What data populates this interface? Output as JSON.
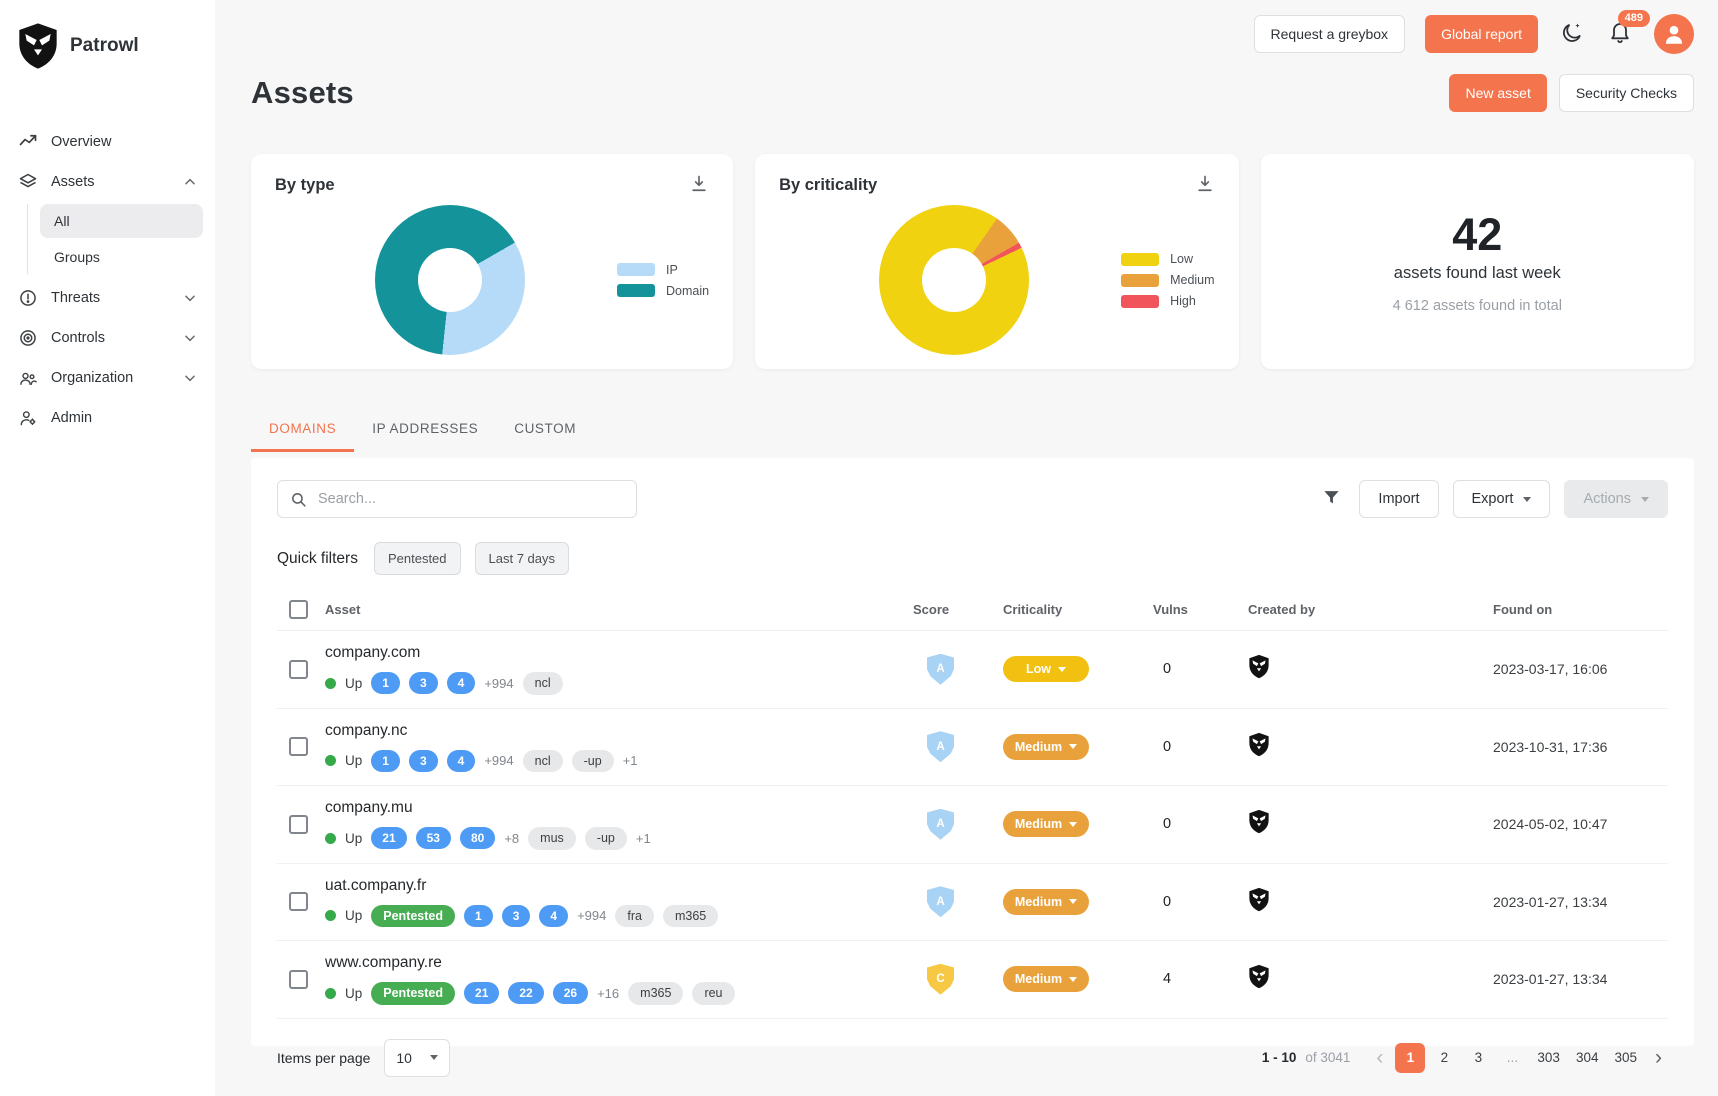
{
  "brand": {
    "name": "Patrowl"
  },
  "sidebar": {
    "items": [
      {
        "label": "Overview"
      },
      {
        "label": "Assets",
        "children": [
          {
            "label": "All"
          },
          {
            "label": "Groups"
          }
        ]
      },
      {
        "label": "Threats"
      },
      {
        "label": "Controls"
      },
      {
        "label": "Organization"
      },
      {
        "label": "Admin"
      }
    ]
  },
  "header": {
    "request_greybox_label": "Request a greybox",
    "global_report_label": "Global report",
    "notification_count": "489"
  },
  "page": {
    "title": "Assets",
    "new_asset_label": "New asset",
    "security_checks_label": "Security Checks"
  },
  "chart_data": [
    {
      "type": "pie",
      "title": "By type",
      "donut": true,
      "start_angle": 60,
      "segments": [
        {
          "label": "IP",
          "value": 35,
          "color": "#b5dbf8"
        },
        {
          "label": "Domain",
          "value": 65,
          "color": "#14939b"
        }
      ],
      "legend": [
        {
          "label": "IP",
          "color": "#b5dbf8"
        },
        {
          "label": "Domain",
          "color": "#14939b"
        }
      ],
      "legend_position": "right"
    },
    {
      "type": "pie",
      "title": "By criticality",
      "donut": true,
      "start_angle": 35,
      "segments": [
        {
          "label": "Medium",
          "value": 7,
          "color": "#e9a23b"
        },
        {
          "label": "High",
          "value": 1.2,
          "color": "#f2545b"
        },
        {
          "label": "Low",
          "value": 91.8,
          "color": "#f0d211"
        }
      ],
      "legend": [
        {
          "label": "Low",
          "color": "#f0d211"
        },
        {
          "label": "Medium",
          "color": "#e9a23b"
        },
        {
          "label": "High",
          "color": "#f2545b"
        }
      ],
      "legend_position": "right"
    }
  ],
  "stats": {
    "value": "42",
    "label": "assets found last week",
    "sublabel": "4 612 assets found in total"
  },
  "tabs": [
    {
      "label": "DOMAINS",
      "active": true
    },
    {
      "label": "IP ADDRESSES",
      "active": false
    },
    {
      "label": "CUSTOM",
      "active": false
    }
  ],
  "toolbar": {
    "search_placeholder": "Search...",
    "import_label": "Import",
    "export_label": "Export",
    "actions_label": "Actions"
  },
  "quick_filters": {
    "label": "Quick filters",
    "chips": [
      "Pentested",
      "Last 7 days"
    ]
  },
  "table": {
    "columns": [
      "Asset",
      "Score",
      "Criticality",
      "Vulns",
      "Created by",
      "Found on"
    ],
    "pentested_label": "Pentested",
    "status_colors": {
      "Low": "#f2c011",
      "Medium": "#e9a23b"
    },
    "score_colors": {
      "A": "#a8d3f4",
      "C": "#f6c844"
    },
    "rows": [
      {
        "name": "company.com",
        "status": "Up",
        "pentested": false,
        "counts": [
          "1",
          "3",
          "4"
        ],
        "more": "+994",
        "tags": [
          "ncl"
        ],
        "extra": "",
        "score": "A",
        "criticality": "Low",
        "vulns": "0",
        "created_by": "patrowl",
        "found_on": "2023-03-17, 16:06"
      },
      {
        "name": "company.nc",
        "status": "Up",
        "pentested": false,
        "counts": [
          "1",
          "3",
          "4"
        ],
        "more": "+994",
        "tags": [
          "ncl",
          "-up"
        ],
        "extra": "+1",
        "score": "A",
        "criticality": "Medium",
        "vulns": "0",
        "created_by": "patrowl",
        "found_on": "2023-10-31, 17:36"
      },
      {
        "name": "company.mu",
        "status": "Up",
        "pentested": false,
        "counts": [
          "21",
          "53",
          "80"
        ],
        "more": "+8",
        "tags": [
          "mus",
          "-up"
        ],
        "extra": "+1",
        "score": "A",
        "criticality": "Medium",
        "vulns": "0",
        "created_by": "patrowl",
        "found_on": "2024-05-02, 10:47"
      },
      {
        "name": "uat.company.fr",
        "status": "Up",
        "pentested": true,
        "counts": [
          "1",
          "3",
          "4"
        ],
        "more": "+994",
        "tags": [
          "fra",
          "m365"
        ],
        "extra": "",
        "score": "A",
        "criticality": "Medium",
        "vulns": "0",
        "created_by": "patrowl",
        "found_on": "2023-01-27, 13:34"
      },
      {
        "name": "www.company.re",
        "status": "Up",
        "pentested": true,
        "counts": [
          "21",
          "22",
          "26"
        ],
        "more": "+16",
        "tags": [
          "m365",
          "reu"
        ],
        "extra": "",
        "score": "C",
        "criticality": "Medium",
        "vulns": "4",
        "created_by": "patrowl",
        "found_on": "2023-01-27, 13:34"
      }
    ]
  },
  "pagination": {
    "items_per_page_label": "Items per page",
    "per_page": "10",
    "range": "1 - 10",
    "total": "of 3041",
    "pages": [
      "1",
      "2",
      "3",
      "...",
      "303",
      "304",
      "305"
    ],
    "active_page": "1"
  }
}
